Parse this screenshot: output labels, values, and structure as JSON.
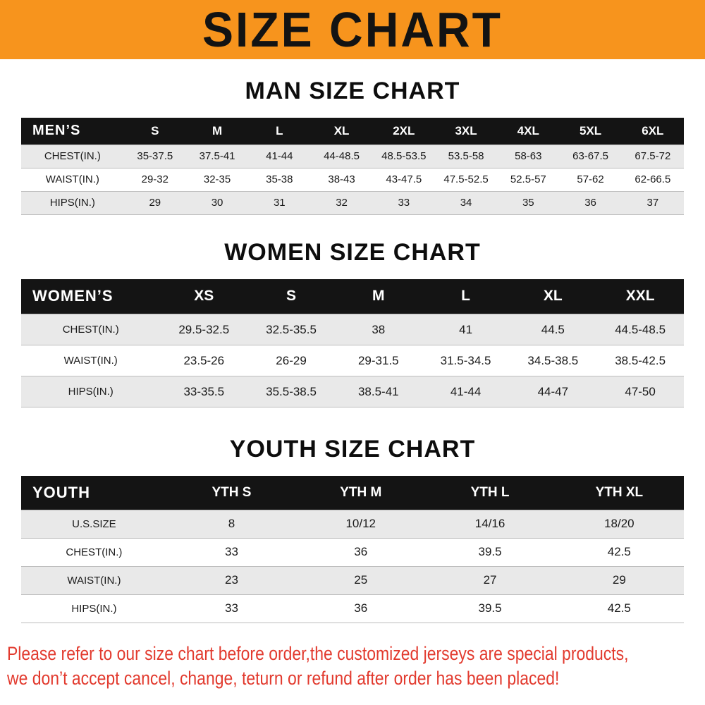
{
  "banner": {
    "title": "SIZE CHART",
    "bg_color": "#F7941D"
  },
  "tables": {
    "men": {
      "heading": "MAN SIZE CHART",
      "header": [
        "MEN’S",
        "S",
        "M",
        "L",
        "XL",
        "2XL",
        "3XL",
        "4XL",
        "5XL",
        "6XL"
      ],
      "rows": [
        [
          "CHEST(IN.)",
          "35-37.5",
          "37.5-41",
          "41-44",
          "44-48.5",
          "48.5-53.5",
          "53.5-58",
          "58-63",
          "63-67.5",
          "67.5-72"
        ],
        [
          "WAIST(IN.)",
          "29-32",
          "32-35",
          "35-38",
          "38-43",
          "43-47.5",
          "47.5-52.5",
          "52.5-57",
          "57-62",
          "62-66.5"
        ],
        [
          "HIPS(IN.)",
          "29",
          "30",
          "31",
          "32",
          "33",
          "34",
          "35",
          "36",
          "37"
        ]
      ]
    },
    "women": {
      "heading": "WOMEN SIZE CHART",
      "header": [
        "WOMEN’S",
        "XS",
        "S",
        "M",
        "L",
        "XL",
        "XXL"
      ],
      "rows": [
        [
          "CHEST(IN.)",
          "29.5-32.5",
          "32.5-35.5",
          "38",
          "41",
          "44.5",
          "44.5-48.5"
        ],
        [
          "WAIST(IN.)",
          "23.5-26",
          "26-29",
          "29-31.5",
          "31.5-34.5",
          "34.5-38.5",
          "38.5-42.5"
        ],
        [
          "HIPS(IN.)",
          "33-35.5",
          "35.5-38.5",
          "38.5-41",
          "41-44",
          "44-47",
          "47-50"
        ]
      ]
    },
    "youth": {
      "heading": "YOUTH SIZE CHART",
      "header": [
        "YOUTH",
        "YTH S",
        "YTH M",
        "YTH L",
        "YTH XL"
      ],
      "rows": [
        [
          "U.S.SIZE",
          "8",
          "10/12",
          "14/16",
          "18/20"
        ],
        [
          "CHEST(IN.)",
          "33",
          "36",
          "39.5",
          "42.5"
        ],
        [
          "WAIST(IN.)",
          "23",
          "25",
          "27",
          "29"
        ],
        [
          "HIPS(IN.)",
          "33",
          "36",
          "39.5",
          "42.5"
        ]
      ]
    }
  },
  "footer": {
    "line1": "Please refer to our size chart before order,the customized jerseys are special products,",
    "line2": "we don’t accept cancel, change, teturn or refund after order has been placed!",
    "color": "#e23a2e"
  }
}
